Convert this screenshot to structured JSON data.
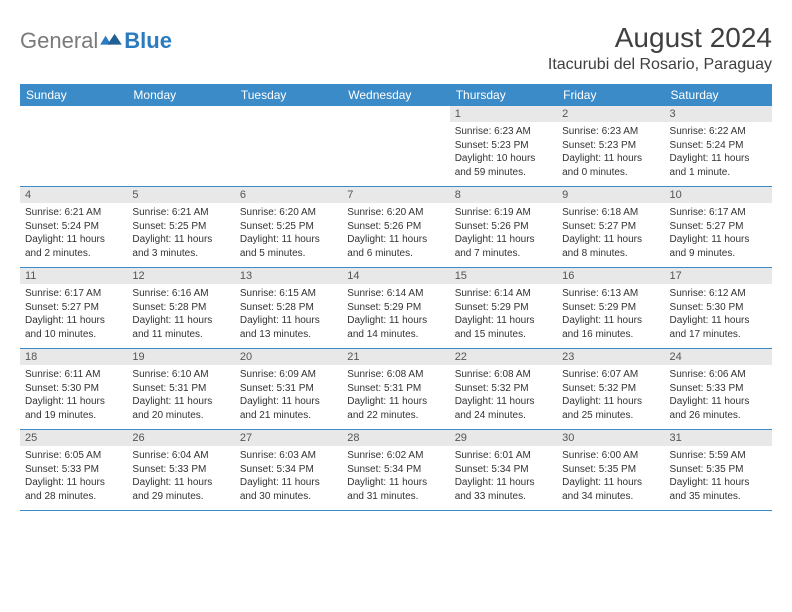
{
  "logo": {
    "textA": "General",
    "textB": "Blue"
  },
  "title": "August 2024",
  "location": "Itacurubi del Rosario, Paraguay",
  "colors": {
    "headerBar": "#3b8bc8",
    "dayNumBar": "#e8e8e8",
    "rowBorder": "#3b8bc8",
    "text": "#333333",
    "logoGray": "#7a7a7a",
    "logoBlue": "#2b7bbf"
  },
  "dayNames": [
    "Sunday",
    "Monday",
    "Tuesday",
    "Wednesday",
    "Thursday",
    "Friday",
    "Saturday"
  ],
  "weeks": [
    [
      null,
      null,
      null,
      null,
      {
        "n": "1",
        "sr": "6:23 AM",
        "ss": "5:23 PM",
        "dl": "10 hours and 59 minutes."
      },
      {
        "n": "2",
        "sr": "6:23 AM",
        "ss": "5:23 PM",
        "dl": "11 hours and 0 minutes."
      },
      {
        "n": "3",
        "sr": "6:22 AM",
        "ss": "5:24 PM",
        "dl": "11 hours and 1 minute."
      }
    ],
    [
      {
        "n": "4",
        "sr": "6:21 AM",
        "ss": "5:24 PM",
        "dl": "11 hours and 2 minutes."
      },
      {
        "n": "5",
        "sr": "6:21 AM",
        "ss": "5:25 PM",
        "dl": "11 hours and 3 minutes."
      },
      {
        "n": "6",
        "sr": "6:20 AM",
        "ss": "5:25 PM",
        "dl": "11 hours and 5 minutes."
      },
      {
        "n": "7",
        "sr": "6:20 AM",
        "ss": "5:26 PM",
        "dl": "11 hours and 6 minutes."
      },
      {
        "n": "8",
        "sr": "6:19 AM",
        "ss": "5:26 PM",
        "dl": "11 hours and 7 minutes."
      },
      {
        "n": "9",
        "sr": "6:18 AM",
        "ss": "5:27 PM",
        "dl": "11 hours and 8 minutes."
      },
      {
        "n": "10",
        "sr": "6:17 AM",
        "ss": "5:27 PM",
        "dl": "11 hours and 9 minutes."
      }
    ],
    [
      {
        "n": "11",
        "sr": "6:17 AM",
        "ss": "5:27 PM",
        "dl": "11 hours and 10 minutes."
      },
      {
        "n": "12",
        "sr": "6:16 AM",
        "ss": "5:28 PM",
        "dl": "11 hours and 11 minutes."
      },
      {
        "n": "13",
        "sr": "6:15 AM",
        "ss": "5:28 PM",
        "dl": "11 hours and 13 minutes."
      },
      {
        "n": "14",
        "sr": "6:14 AM",
        "ss": "5:29 PM",
        "dl": "11 hours and 14 minutes."
      },
      {
        "n": "15",
        "sr": "6:14 AM",
        "ss": "5:29 PM",
        "dl": "11 hours and 15 minutes."
      },
      {
        "n": "16",
        "sr": "6:13 AM",
        "ss": "5:29 PM",
        "dl": "11 hours and 16 minutes."
      },
      {
        "n": "17",
        "sr": "6:12 AM",
        "ss": "5:30 PM",
        "dl": "11 hours and 17 minutes."
      }
    ],
    [
      {
        "n": "18",
        "sr": "6:11 AM",
        "ss": "5:30 PM",
        "dl": "11 hours and 19 minutes."
      },
      {
        "n": "19",
        "sr": "6:10 AM",
        "ss": "5:31 PM",
        "dl": "11 hours and 20 minutes."
      },
      {
        "n": "20",
        "sr": "6:09 AM",
        "ss": "5:31 PM",
        "dl": "11 hours and 21 minutes."
      },
      {
        "n": "21",
        "sr": "6:08 AM",
        "ss": "5:31 PM",
        "dl": "11 hours and 22 minutes."
      },
      {
        "n": "22",
        "sr": "6:08 AM",
        "ss": "5:32 PM",
        "dl": "11 hours and 24 minutes."
      },
      {
        "n": "23",
        "sr": "6:07 AM",
        "ss": "5:32 PM",
        "dl": "11 hours and 25 minutes."
      },
      {
        "n": "24",
        "sr": "6:06 AM",
        "ss": "5:33 PM",
        "dl": "11 hours and 26 minutes."
      }
    ],
    [
      {
        "n": "25",
        "sr": "6:05 AM",
        "ss": "5:33 PM",
        "dl": "11 hours and 28 minutes."
      },
      {
        "n": "26",
        "sr": "6:04 AM",
        "ss": "5:33 PM",
        "dl": "11 hours and 29 minutes."
      },
      {
        "n": "27",
        "sr": "6:03 AM",
        "ss": "5:34 PM",
        "dl": "11 hours and 30 minutes."
      },
      {
        "n": "28",
        "sr": "6:02 AM",
        "ss": "5:34 PM",
        "dl": "11 hours and 31 minutes."
      },
      {
        "n": "29",
        "sr": "6:01 AM",
        "ss": "5:34 PM",
        "dl": "11 hours and 33 minutes."
      },
      {
        "n": "30",
        "sr": "6:00 AM",
        "ss": "5:35 PM",
        "dl": "11 hours and 34 minutes."
      },
      {
        "n": "31",
        "sr": "5:59 AM",
        "ss": "5:35 PM",
        "dl": "11 hours and 35 minutes."
      }
    ]
  ],
  "labels": {
    "sunrise": "Sunrise:",
    "sunset": "Sunset:",
    "daylight": "Daylight:"
  }
}
